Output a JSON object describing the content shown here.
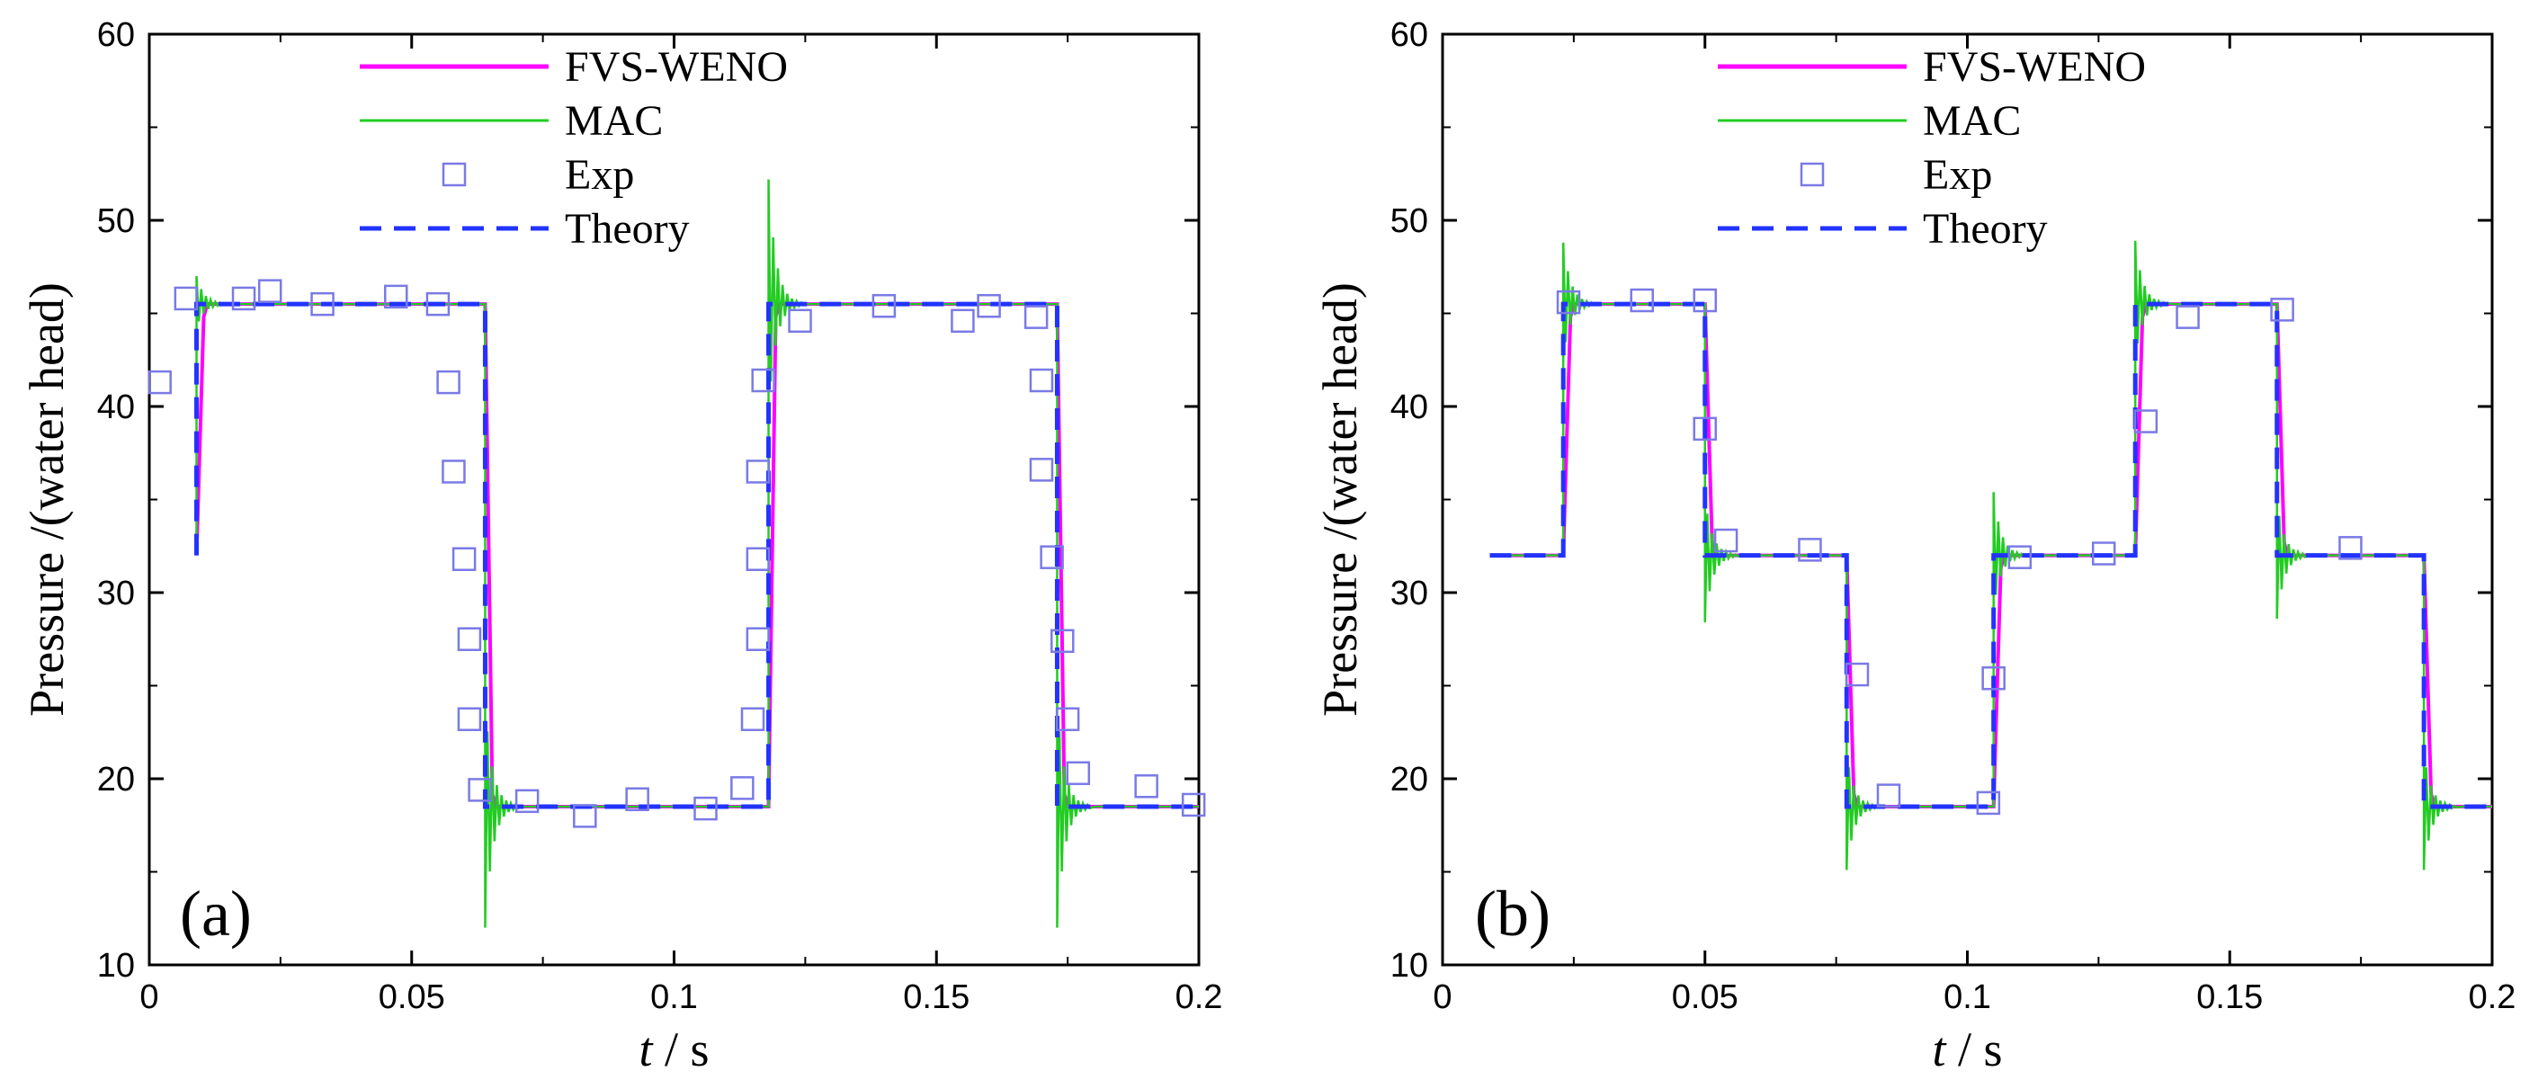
{
  "chart_data": [
    {
      "type": "line",
      "panel_label": "(a)",
      "xlabel_var": "t",
      "xlabel_unit": " / s",
      "ylabel": "Pressure /(water head)",
      "xlim": [
        0,
        0.2
      ],
      "ylim": [
        10,
        60
      ],
      "xticks": [
        "0",
        "0.05",
        "0.1",
        "0.15",
        "0.2"
      ],
      "xtick_values": [
        0,
        0.05,
        0.1,
        0.15,
        0.2
      ],
      "yticks": [
        "10",
        "20",
        "30",
        "40",
        "50",
        "60"
      ],
      "ytick_values": [
        10,
        20,
        30,
        40,
        50,
        60
      ],
      "legend": [
        "FVS-WENO",
        "MAC",
        "Exp",
        "Theory"
      ],
      "colors": {
        "fvs": "#ff00ff",
        "mac": "#22cc22",
        "exp": "#7a7ae6",
        "theory": "#2233ff"
      },
      "theory_start": [
        0.009,
        32
      ],
      "theory": [
        [
          0.009,
          45.5
        ],
        [
          0.064,
          45.5
        ],
        [
          0.064,
          18.5
        ],
        [
          0.118,
          18.5
        ],
        [
          0.118,
          45.5
        ],
        [
          0.173,
          45.5
        ],
        [
          0.173,
          18.5
        ],
        [
          0.2,
          18.5
        ]
      ],
      "mac_spikes": [
        {
          "t": 0.009,
          "from": 32,
          "to": 45.5,
          "peak": 47
        },
        {
          "t": 0.064,
          "from": 45.5,
          "to": 18.5,
          "peak": 12
        },
        {
          "t": 0.118,
          "from": 18.5,
          "to": 45.5,
          "peak": 52.2
        },
        {
          "t": 0.173,
          "from": 45.5,
          "to": 18.5,
          "peak": 12
        }
      ],
      "exp_points": [
        [
          0.002,
          41.3
        ],
        [
          0.007,
          45.8
        ],
        [
          0.018,
          45.8
        ],
        [
          0.023,
          46.2
        ],
        [
          0.033,
          45.5
        ],
        [
          0.047,
          45.9
        ],
        [
          0.055,
          45.5
        ],
        [
          0.057,
          41.3
        ],
        [
          0.058,
          36.5
        ],
        [
          0.06,
          31.8
        ],
        [
          0.061,
          27.5
        ],
        [
          0.061,
          23.2
        ],
        [
          0.063,
          19.4
        ],
        [
          0.072,
          18.8
        ],
        [
          0.083,
          18.0
        ],
        [
          0.093,
          18.9
        ],
        [
          0.106,
          18.4
        ],
        [
          0.113,
          19.5
        ],
        [
          0.115,
          23.2
        ],
        [
          0.116,
          27.5
        ],
        [
          0.116,
          31.8
        ],
        [
          0.116,
          36.5
        ],
        [
          0.117,
          41.4
        ],
        [
          0.124,
          44.6
        ],
        [
          0.14,
          45.4
        ],
        [
          0.155,
          44.6
        ],
        [
          0.16,
          45.4
        ],
        [
          0.169,
          44.8
        ],
        [
          0.17,
          41.4
        ],
        [
          0.17,
          36.6
        ],
        [
          0.172,
          31.9
        ],
        [
          0.174,
          27.4
        ],
        [
          0.175,
          23.2
        ],
        [
          0.177,
          20.3
        ],
        [
          0.19,
          19.6
        ],
        [
          0.199,
          18.6
        ]
      ]
    },
    {
      "type": "line",
      "panel_label": "(b)",
      "xlabel_var": "t",
      "xlabel_unit": " / s",
      "ylabel": "Pressure /(water head)",
      "xlim": [
        0,
        0.2
      ],
      "ylim": [
        10,
        60
      ],
      "xticks": [
        "0",
        "0.05",
        "0.1",
        "0.15",
        "0.2"
      ],
      "xtick_values": [
        0,
        0.05,
        0.1,
        0.15,
        0.2
      ],
      "yticks": [
        "10",
        "20",
        "30",
        "40",
        "50",
        "60"
      ],
      "ytick_values": [
        10,
        20,
        30,
        40,
        50,
        60
      ],
      "legend": [
        "FVS-WENO",
        "MAC",
        "Exp",
        "Theory"
      ],
      "colors": {
        "fvs": "#ff00ff",
        "mac": "#22cc22",
        "exp": "#7a7ae6",
        "theory": "#2233ff"
      },
      "theory_start": [
        0.009,
        32
      ],
      "theory": [
        [
          0.023,
          32
        ],
        [
          0.023,
          45.5
        ],
        [
          0.05,
          45.5
        ],
        [
          0.05,
          32
        ],
        [
          0.077,
          32
        ],
        [
          0.077,
          18.5
        ],
        [
          0.105,
          18.5
        ],
        [
          0.105,
          32
        ],
        [
          0.132,
          32
        ],
        [
          0.132,
          45.5
        ],
        [
          0.159,
          45.5
        ],
        [
          0.159,
          32
        ],
        [
          0.187,
          32
        ],
        [
          0.187,
          18.5
        ],
        [
          0.2,
          18.5
        ]
      ],
      "mac_spikes": [
        {
          "t": 0.023,
          "from": 32,
          "to": 45.5,
          "peak": 48.8
        },
        {
          "t": 0.05,
          "from": 45.5,
          "to": 32,
          "peak": 28.4
        },
        {
          "t": 0.077,
          "from": 32,
          "to": 18.5,
          "peak": 15.1
        },
        {
          "t": 0.105,
          "from": 18.5,
          "to": 32,
          "peak": 35.4
        },
        {
          "t": 0.132,
          "from": 32,
          "to": 45.5,
          "peak": 48.9
        },
        {
          "t": 0.159,
          "from": 45.5,
          "to": 32,
          "peak": 28.6
        },
        {
          "t": 0.187,
          "from": 32,
          "to": 18.5,
          "peak": 15.1
        }
      ],
      "exp_points": [
        [
          0.024,
          45.6
        ],
        [
          0.038,
          45.7
        ],
        [
          0.05,
          45.7
        ],
        [
          0.05,
          38.8
        ],
        [
          0.054,
          32.8
        ],
        [
          0.07,
          32.3
        ],
        [
          0.079,
          25.6
        ],
        [
          0.085,
          19.1
        ],
        [
          0.104,
          18.7
        ],
        [
          0.105,
          25.4
        ],
        [
          0.11,
          31.9
        ],
        [
          0.126,
          32.1
        ],
        [
          0.134,
          39.2
        ],
        [
          0.142,
          44.8
        ],
        [
          0.16,
          45.2
        ],
        [
          0.173,
          32.4
        ]
      ]
    }
  ]
}
